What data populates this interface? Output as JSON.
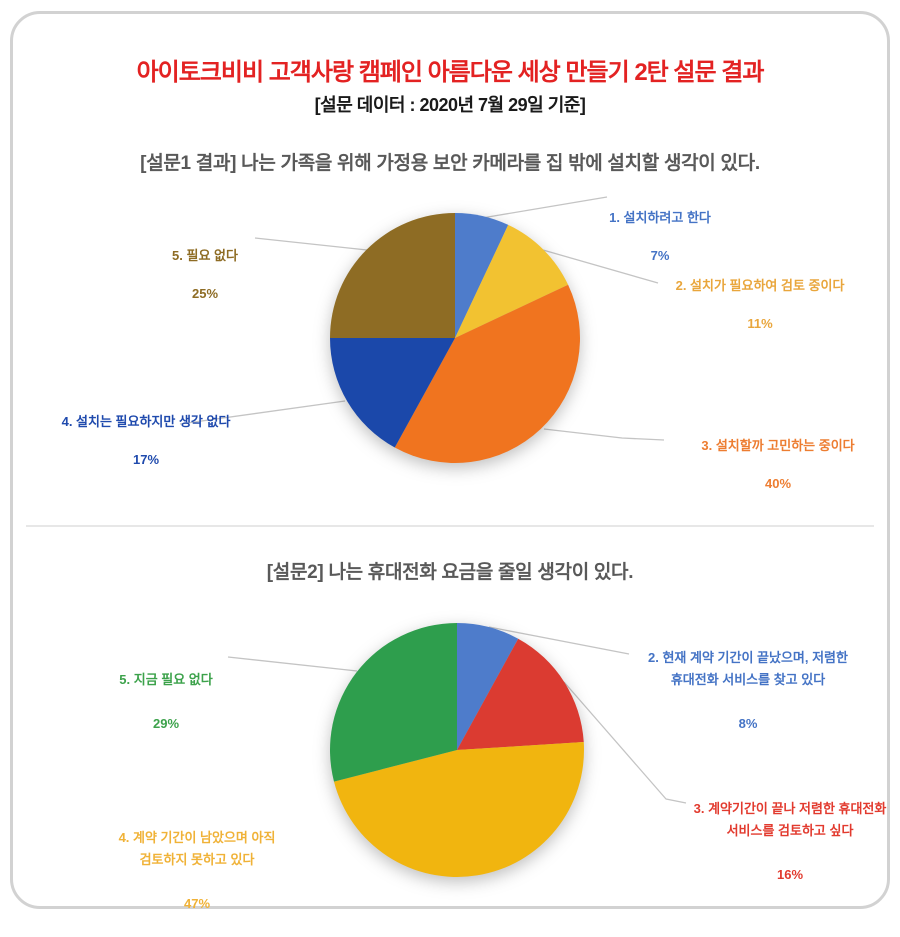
{
  "page": {
    "title": "아이토크비비 고객사랑 캠페인 아름다운 세상 만들기 2탄 설문 결과",
    "title_color": "#E32222",
    "subtitle": "[설문 데이터 : 2020년 7월 29일 기준]",
    "subtitle_color": "#1A1A1A",
    "section_title_color": "#595959",
    "divider_color": "#E7E7E7",
    "border_color": "#D2D2D2",
    "leader_line_color": "#C4C4C4"
  },
  "chart_data": [
    {
      "type": "pie",
      "title": "[설문1 결과] 나는 가족을 위해 가정용 보안 카메라를 집 밖에 설치할 생각이 있다.",
      "legend_position": "callout-labels",
      "slices": [
        {
          "label": "1. 설치하려고 한다",
          "pct": "7%",
          "value": 7,
          "color": "#4E7CCB",
          "label_color": "#4473C5"
        },
        {
          "label": "2. 설치가 필요하여 검토 중이다",
          "pct": "11%",
          "value": 11,
          "color": "#F2C231",
          "label_color": "#E9A63C"
        },
        {
          "label": "3. 설치할까 고민하는 중이다",
          "pct": "40%",
          "value": 40,
          "color": "#F0741F",
          "label_color": "#ED7D31"
        },
        {
          "label": "4. 설치는 필요하지만 생각 없다",
          "pct": "17%",
          "value": 17,
          "color": "#1B48AA",
          "label_color": "#1F4AAD"
        },
        {
          "label": "5. 필요 없다",
          "pct": "25%",
          "value": 25,
          "color": "#8E6C24",
          "label_color": "#8E6C24"
        }
      ]
    },
    {
      "type": "pie",
      "title": "[설문2] 나는 휴대전화 요금을 줄일 생각이 있다.",
      "legend_position": "callout-labels",
      "slices": [
        {
          "label": "2. 현재 계약 기간이 끝났으며, 저렴한\n휴대전화 서비스를 찾고 있다",
          "pct": "8%",
          "value": 8,
          "color": "#4E7CCB",
          "label_color": "#4473C5"
        },
        {
          "label": "3. 계약기간이 끝나 저렴한 휴대전화\n서비스를 검토하고 싶다",
          "pct": "16%",
          "value": 16,
          "color": "#DB3B31",
          "label_color": "#E23A2E"
        },
        {
          "label": "4. 계약 기간이 남았으며 아직\n검토하지 못하고 있다",
          "pct": "47%",
          "value": 47,
          "color": "#F1B50F",
          "label_color": "#F0B237"
        },
        {
          "label": "5. 지금 필요 없다",
          "pct": "29%",
          "value": 29,
          "color": "#2E9E4D",
          "label_color": "#3CA24B"
        }
      ]
    }
  ]
}
